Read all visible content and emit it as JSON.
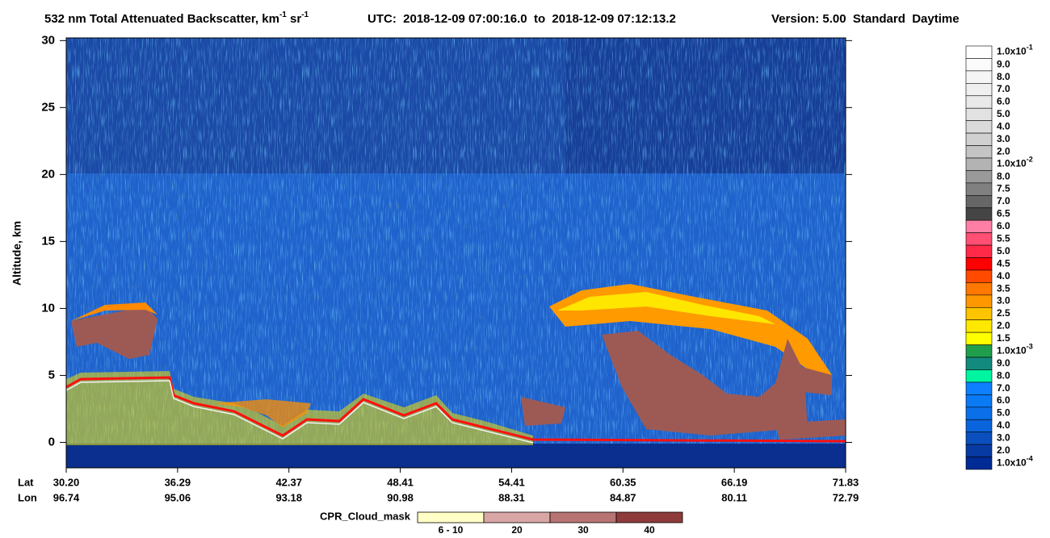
{
  "chart_data": {
    "type": "curtain",
    "title": {
      "text": "532 nm Total Attenuated Backscatter, km",
      "sup": "-1",
      "text2": "sr",
      "sup2": "-1"
    },
    "time_range": "UTC:  2018-12-09 07:00:16.0  to  2018-12-09 07:12:13.2",
    "version": "Version: 5.00  Standard  Daytime",
    "y_label": "Altitude, km",
    "ylim": [
      -1.9,
      30.2
    ],
    "yticks": [
      0,
      5,
      10,
      15,
      20,
      25,
      30
    ],
    "x_row_labels": [
      "Lat",
      "Lon"
    ],
    "lat": [
      "30.20",
      "36.29",
      "42.37",
      "48.41",
      "54.41",
      "60.35",
      "66.19",
      "71.83"
    ],
    "lon": [
      "96.74",
      "95.06",
      "93.18",
      "90.98",
      "88.31",
      "84.87",
      "80.11",
      "72.79"
    ],
    "colorbar": {
      "labels": [
        {
          "text": "1.0x10",
          "sup": "-1"
        },
        "9.0",
        "8.0",
        "7.0",
        "6.0",
        "5.0",
        "4.0",
        "3.0",
        "2.0",
        {
          "text": "1.0x10",
          "sup": "-2"
        },
        "8.0",
        "7.5",
        "7.0",
        "6.5",
        "6.0",
        "5.5",
        "5.0",
        "4.5",
        "4.0",
        "3.5",
        "3.0",
        "2.5",
        "2.0",
        "1.5",
        {
          "text": "1.0x10",
          "sup": "-3"
        },
        "9.0",
        "8.0",
        "7.0",
        "6.0",
        "5.0",
        "4.0",
        "3.0",
        "2.0",
        {
          "text": "1.0x10",
          "sup": "-4"
        }
      ],
      "colors": [
        "#ffffff",
        "#fbfbfb",
        "#f5f5f5",
        "#efefef",
        "#e9e9e9",
        "#e2e2e2",
        "#dadada",
        "#d0d0d0",
        "#c4c4c4",
        "#b3b3b3",
        "#9a9a9a",
        "#808080",
        "#666666",
        "#454545",
        "#ff7fa6",
        "#ff4f73",
        "#ff2a47",
        "#ff0000",
        "#ff4a00",
        "#ff7800",
        "#ff9800",
        "#ffc400",
        "#ffe800",
        "#ffff00",
        "#1f9e4c",
        "#138a7e",
        "#00f5a0",
        "#0d7fff",
        "#0a7af5",
        "#0a6fe8",
        "#0a65dc",
        "#0a4fbd",
        "#083aa3",
        "#002b96"
      ]
    },
    "cpr_legend": {
      "title": "CPR_Cloud_mask",
      "categories": [
        "6 - 10",
        "20",
        "30",
        "40"
      ],
      "colors": [
        "#ffffc6",
        "#d9a6a6",
        "#b87373",
        "#8f3b3b"
      ]
    }
  }
}
